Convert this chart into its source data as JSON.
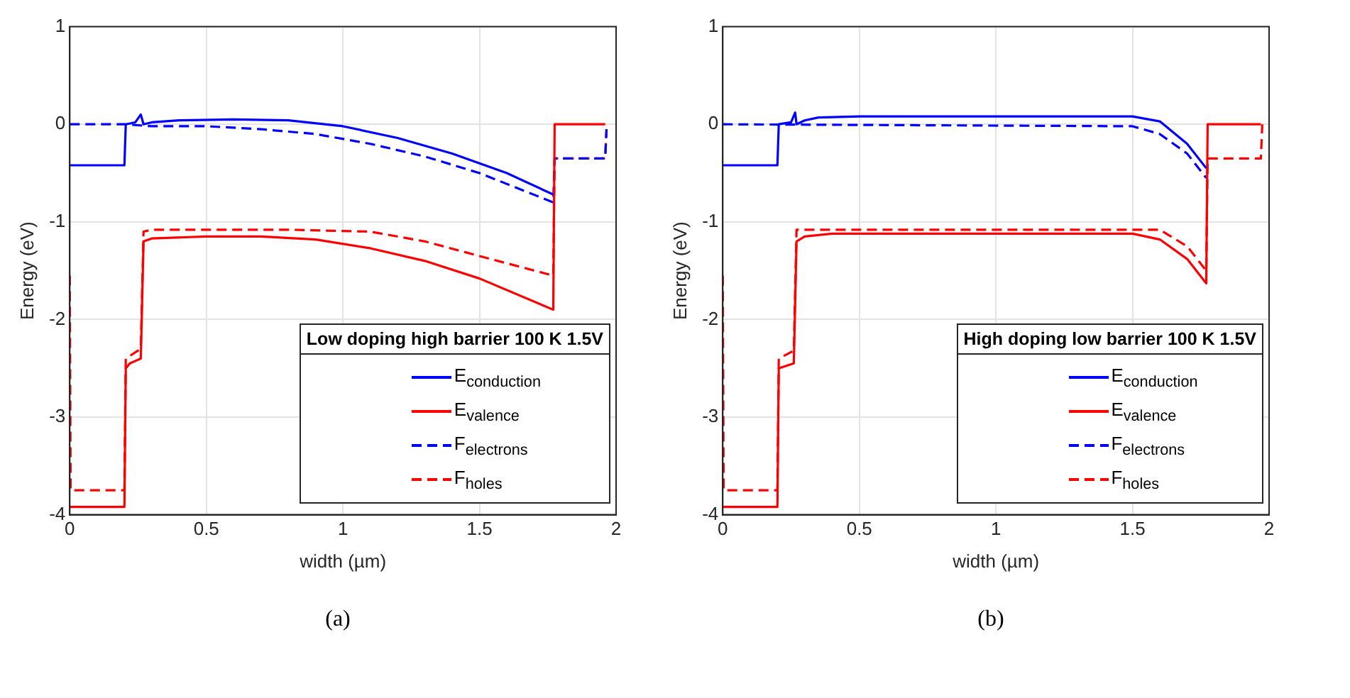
{
  "chart_data": [
    {
      "type": "line",
      "xlabel": "width (µm)",
      "ylabel": "Energy (eV)",
      "legend_title": "Low doping high barrier 100 K 1.5V",
      "legend": "bottom right",
      "grid": true,
      "xlim": [
        0,
        2
      ],
      "ylim": [
        -4,
        1
      ],
      "xticks": [
        0,
        0.5,
        1,
        1.5,
        2
      ],
      "yticks": [
        -4,
        -3,
        -2,
        -1,
        0,
        1
      ],
      "annotations": [
        "(a)"
      ],
      "series": [
        {
          "name": "E$_{conduction}$",
          "color": "#0000ff",
          "line_style": "solid",
          "x": [
            0,
            0.2,
            0.205,
            0.24,
            0.26,
            0.27,
            0.3,
            0.4,
            0.6,
            0.8,
            1.0,
            1.2,
            1.4,
            1.6,
            1.77
          ],
          "values": [
            -0.42,
            -0.42,
            0,
            0.02,
            0.1,
            0,
            0.02,
            0.04,
            0.05,
            0.04,
            -0.02,
            -0.14,
            -0.3,
            -0.5,
            -0.72
          ]
        },
        {
          "name": "E$_{valence}$",
          "color": "#ff0000",
          "line_style": "solid",
          "x": [
            0,
            0.2,
            0.205,
            0.22,
            0.26,
            0.27,
            0.3,
            0.5,
            0.7,
            0.9,
            1.1,
            1.3,
            1.5,
            1.77,
            1.775,
            1.96
          ],
          "values": [
            -3.92,
            -3.92,
            -2.5,
            -2.45,
            -2.4,
            -1.2,
            -1.17,
            -1.15,
            -1.15,
            -1.18,
            -1.27,
            -1.4,
            -1.58,
            -1.9,
            0,
            0
          ]
        },
        {
          "name": "F$_{electrons}$",
          "color": "#0000ff",
          "line_style": "dashed",
          "x": [
            0,
            0.2,
            0.3,
            0.5,
            0.7,
            0.9,
            1.1,
            1.3,
            1.5,
            1.77,
            1.775,
            1.96,
            1.965
          ],
          "values": [
            0,
            0,
            -0.02,
            -0.02,
            -0.05,
            -0.1,
            -0.2,
            -0.33,
            -0.5,
            -0.8,
            -0.35,
            -0.35,
            -0.05
          ]
        },
        {
          "name": "F$_{holes}$",
          "color": "#ff0000",
          "line_style": "dashed",
          "x": [
            0,
            0.003,
            0.2,
            0.205,
            0.26,
            0.27,
            0.3,
            0.8,
            1.1,
            1.3,
            1.5,
            1.77,
            1.775,
            1.96,
            1.965
          ],
          "values": [
            -1.55,
            -3.75,
            -3.75,
            -2.4,
            -2.3,
            -1.1,
            -1.08,
            -1.08,
            -1.1,
            -1.2,
            -1.35,
            -1.55,
            -0.35,
            -0.35,
            -0.05
          ]
        }
      ]
    },
    {
      "type": "line",
      "xlabel": "width (µm)",
      "ylabel": "Energy (eV)",
      "legend_title": "High doping low barrier 100 K 1.5V",
      "legend": "bottom right",
      "grid": true,
      "xlim": [
        0,
        2
      ],
      "ylim": [
        -4,
        1
      ],
      "xticks": [
        0,
        0.5,
        1,
        1.5,
        2
      ],
      "yticks": [
        -4,
        -3,
        -2,
        -1,
        0,
        1
      ],
      "annotations": [
        "(b)"
      ],
      "series": [
        {
          "name": "E$_{conduction}$",
          "color": "#0000ff",
          "line_style": "solid",
          "x": [
            0,
            0.2,
            0.205,
            0.25,
            0.265,
            0.27,
            0.3,
            0.35,
            0.5,
            1.5,
            1.6,
            1.7,
            1.77
          ],
          "values": [
            -0.42,
            -0.42,
            0,
            0.02,
            0.12,
            0,
            0.04,
            0.07,
            0.08,
            0.08,
            0.03,
            -0.2,
            -0.45
          ]
        },
        {
          "name": "E$_{valence}$",
          "color": "#ff0000",
          "line_style": "solid",
          "x": [
            0,
            0.2,
            0.205,
            0.26,
            0.27,
            0.3,
            0.4,
            1.5,
            1.6,
            1.7,
            1.77,
            1.775,
            1.97
          ],
          "values": [
            -3.92,
            -3.92,
            -2.5,
            -2.45,
            -1.2,
            -1.15,
            -1.12,
            -1.12,
            -1.18,
            -1.38,
            -1.63,
            0,
            0
          ]
        },
        {
          "name": "F$_{electrons}$",
          "color": "#0000ff",
          "line_style": "dashed",
          "x": [
            0,
            1.5,
            1.6,
            1.7,
            1.77
          ],
          "values": [
            0,
            -0.02,
            -0.1,
            -0.3,
            -0.55
          ]
        },
        {
          "name": "F$_{holes}$",
          "color": "#ff0000",
          "line_style": "dashed",
          "x": [
            0,
            0.003,
            0.2,
            0.205,
            0.26,
            0.27,
            1.6,
            1.7,
            1.77,
            1.775,
            1.97,
            1.975
          ],
          "values": [
            -1.55,
            -3.75,
            -3.75,
            -2.4,
            -2.32,
            -1.08,
            -1.08,
            -1.25,
            -1.5,
            -0.35,
            -0.35,
            0
          ]
        }
      ]
    }
  ]
}
